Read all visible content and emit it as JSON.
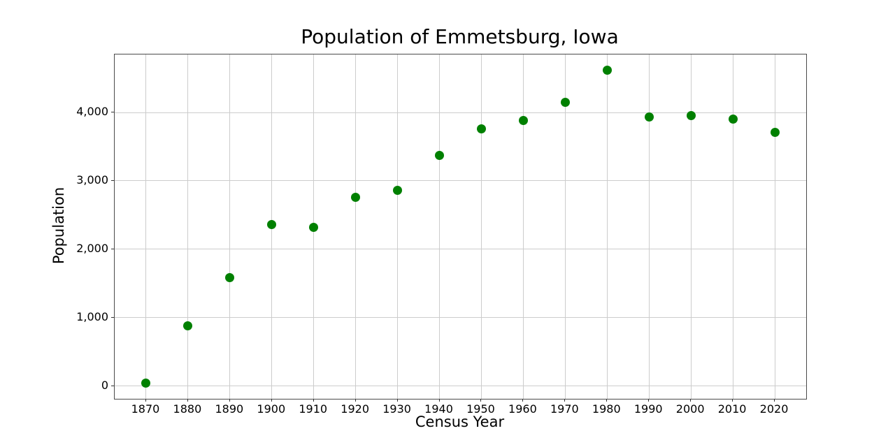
{
  "chart_data": {
    "type": "scatter",
    "title": "Population of Emmetsburg, Iowa",
    "xlabel": "Census Year",
    "ylabel": "Population",
    "x": [
      1870,
      1880,
      1890,
      1900,
      1910,
      1920,
      1930,
      1940,
      1950,
      1960,
      1970,
      1980,
      1990,
      2000,
      2010,
      2020
    ],
    "y": [
      40,
      883,
      1584,
      2361,
      2325,
      2762,
      2865,
      3372,
      3760,
      3887,
      4150,
      4621,
      3940,
      3958,
      3904,
      3706
    ],
    "xlim": [
      1862.5,
      2027.5
    ],
    "ylim": [
      -189,
      4850
    ],
    "x_ticks": [
      1870,
      1880,
      1890,
      1900,
      1910,
      1920,
      1930,
      1940,
      1950,
      1960,
      1970,
      1980,
      1990,
      2000,
      2010,
      2020
    ],
    "x_tick_labels": [
      "1870",
      "1880",
      "1890",
      "1900",
      "1910",
      "1920",
      "1930",
      "1940",
      "1950",
      "1960",
      "1970",
      "1980",
      "1990",
      "2000",
      "2010",
      "2020"
    ],
    "y_ticks": [
      0,
      1000,
      2000,
      3000,
      4000
    ],
    "y_tick_labels": [
      "0",
      "1,000",
      "2,000",
      "3,000",
      "4,000"
    ],
    "grid": true,
    "legend_position": "none",
    "marker_color": "#008000",
    "grid_color": "#cccccc",
    "spine_color": "#4a4a4a"
  }
}
